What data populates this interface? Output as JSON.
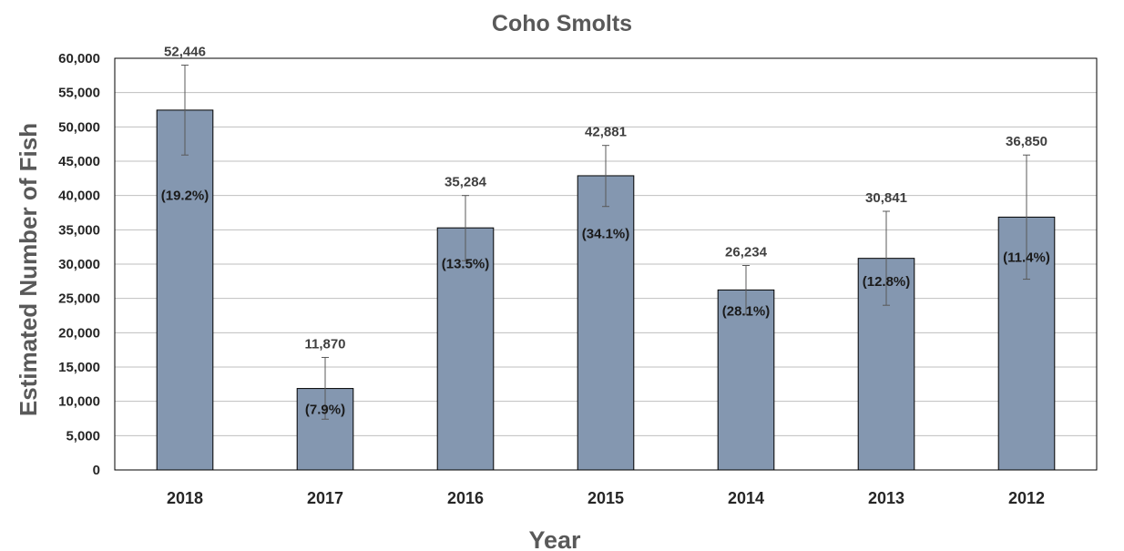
{
  "chart_data": {
    "type": "bar",
    "title": "Coho Smolts",
    "xlabel": "Year",
    "ylabel": "Estimated Number of Fish",
    "categories": [
      "2018",
      "2017",
      "2016",
      "2015",
      "2014",
      "2013",
      "2012"
    ],
    "values": [
      52446,
      11870,
      35284,
      42881,
      26234,
      30841,
      36850
    ],
    "value_labels": [
      "52,446",
      "11,870",
      "35,284",
      "42,881",
      "26,234",
      "30,841",
      "36,850"
    ],
    "percent_labels": [
      "(19.2%)",
      "(7.9%)",
      "(13.5%)",
      "(34.1%)",
      "(28.1%)",
      "(12.8%)",
      "(11.4%)"
    ],
    "error_low": [
      45900,
      7400,
      30500,
      38400,
      22700,
      24000,
      27800
    ],
    "error_high": [
      59000,
      16400,
      40000,
      47300,
      29800,
      37700,
      45900
    ],
    "ylim": [
      0,
      60000
    ],
    "yticks": [
      0,
      5000,
      10000,
      15000,
      20000,
      25000,
      30000,
      35000,
      40000,
      45000,
      50000,
      55000,
      60000
    ],
    "ytick_labels": [
      "0",
      "5,000",
      "10,000",
      "15,000",
      "20,000",
      "25,000",
      "30,000",
      "35,000",
      "40,000",
      "45,000",
      "50,000",
      "55,000",
      "60,000"
    ],
    "grid": true,
    "legend": "none",
    "colors": {
      "bar_fill": "#8497b0",
      "bar_stroke": "#000000",
      "gridline": "#bfbfbf",
      "error_bar": "#595959",
      "title": "#595959"
    }
  }
}
